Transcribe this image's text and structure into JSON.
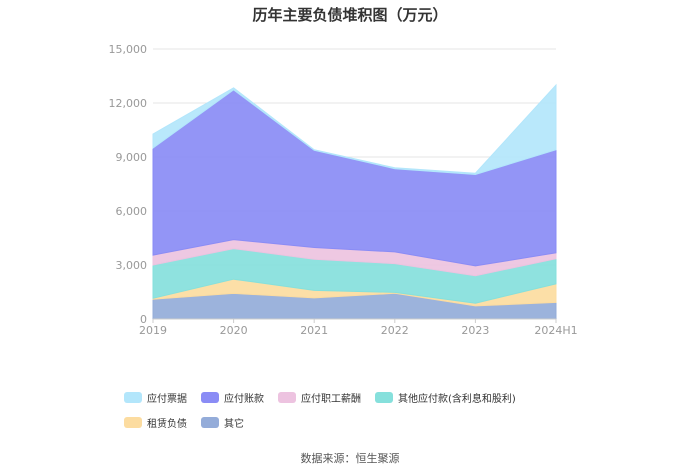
{
  "chart_data": {
    "type": "area",
    "stacked": true,
    "title": "历年主要负债堆积图（万元）",
    "categories": [
      "2019",
      "2020",
      "2021",
      "2022",
      "2023",
      "2024H1"
    ],
    "yticks": [
      "0",
      "3,000",
      "6,000",
      "9,000",
      "12,000",
      "15,000"
    ],
    "ylim": [
      0,
      15000
    ],
    "grid": true,
    "legend_position": "bottom",
    "series": [
      {
        "name": "其它",
        "color": "#94acd9",
        "values": [
          1100,
          1420,
          1170,
          1430,
          730,
          920
        ]
      },
      {
        "name": "租赁负债",
        "color": "#fcdca0",
        "values": [
          50,
          790,
          420,
          50,
          150,
          1030
        ]
      },
      {
        "name": "其他应付款(含利息和股利)",
        "color": "#86e0dc",
        "values": [
          1850,
          1700,
          1730,
          1600,
          1520,
          1400
        ]
      },
      {
        "name": "应付职工薪酬",
        "color": "#edc3e0",
        "values": [
          550,
          500,
          650,
          650,
          550,
          330
        ]
      },
      {
        "name": "应付账款",
        "color": "#8a8cf5",
        "values": [
          5950,
          8320,
          5400,
          4620,
          5080,
          5720
        ]
      },
      {
        "name": "应付票据",
        "color": "#b3e6fb",
        "values": [
          780,
          110,
          30,
          50,
          70,
          3600
        ]
      }
    ]
  },
  "legend_order": [
    "应付票据",
    "应付账款",
    "应付职工薪酬",
    "其他应付款(含利息和股利)",
    "租赁负债",
    "其它"
  ],
  "source_text": "数据来源：恒生聚源"
}
